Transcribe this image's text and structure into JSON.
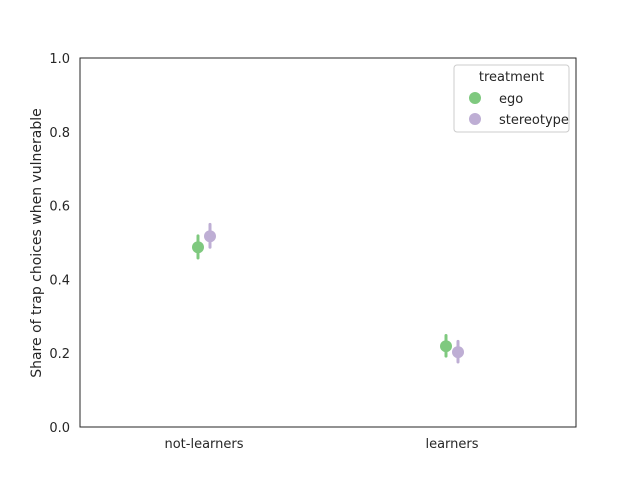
{
  "chart_data": {
    "type": "pointplot",
    "title": "",
    "xlabel": "",
    "ylabel": "Share of trap choices when vulnerable",
    "categories": [
      "not-learners",
      "learners"
    ],
    "ylim": [
      0,
      1.0
    ],
    "yticks": [
      "0.0",
      "0.2",
      "0.4",
      "0.6",
      "0.8",
      "1.0"
    ],
    "grid": false,
    "legend": {
      "title": "treatment",
      "placement": "top-right",
      "entries": [
        "ego",
        "stereotype"
      ]
    },
    "series": [
      {
        "name": "ego",
        "color": "#7fc97f",
        "values": [
          0.487,
          0.219
        ],
        "ci_low": [
          0.458,
          0.192
        ],
        "ci_high": [
          0.518,
          0.248
        ]
      },
      {
        "name": "stereotype",
        "color": "#beaed4",
        "values": [
          0.517,
          0.203
        ],
        "ci_low": [
          0.487,
          0.176
        ],
        "ci_high": [
          0.549,
          0.232
        ]
      }
    ]
  }
}
